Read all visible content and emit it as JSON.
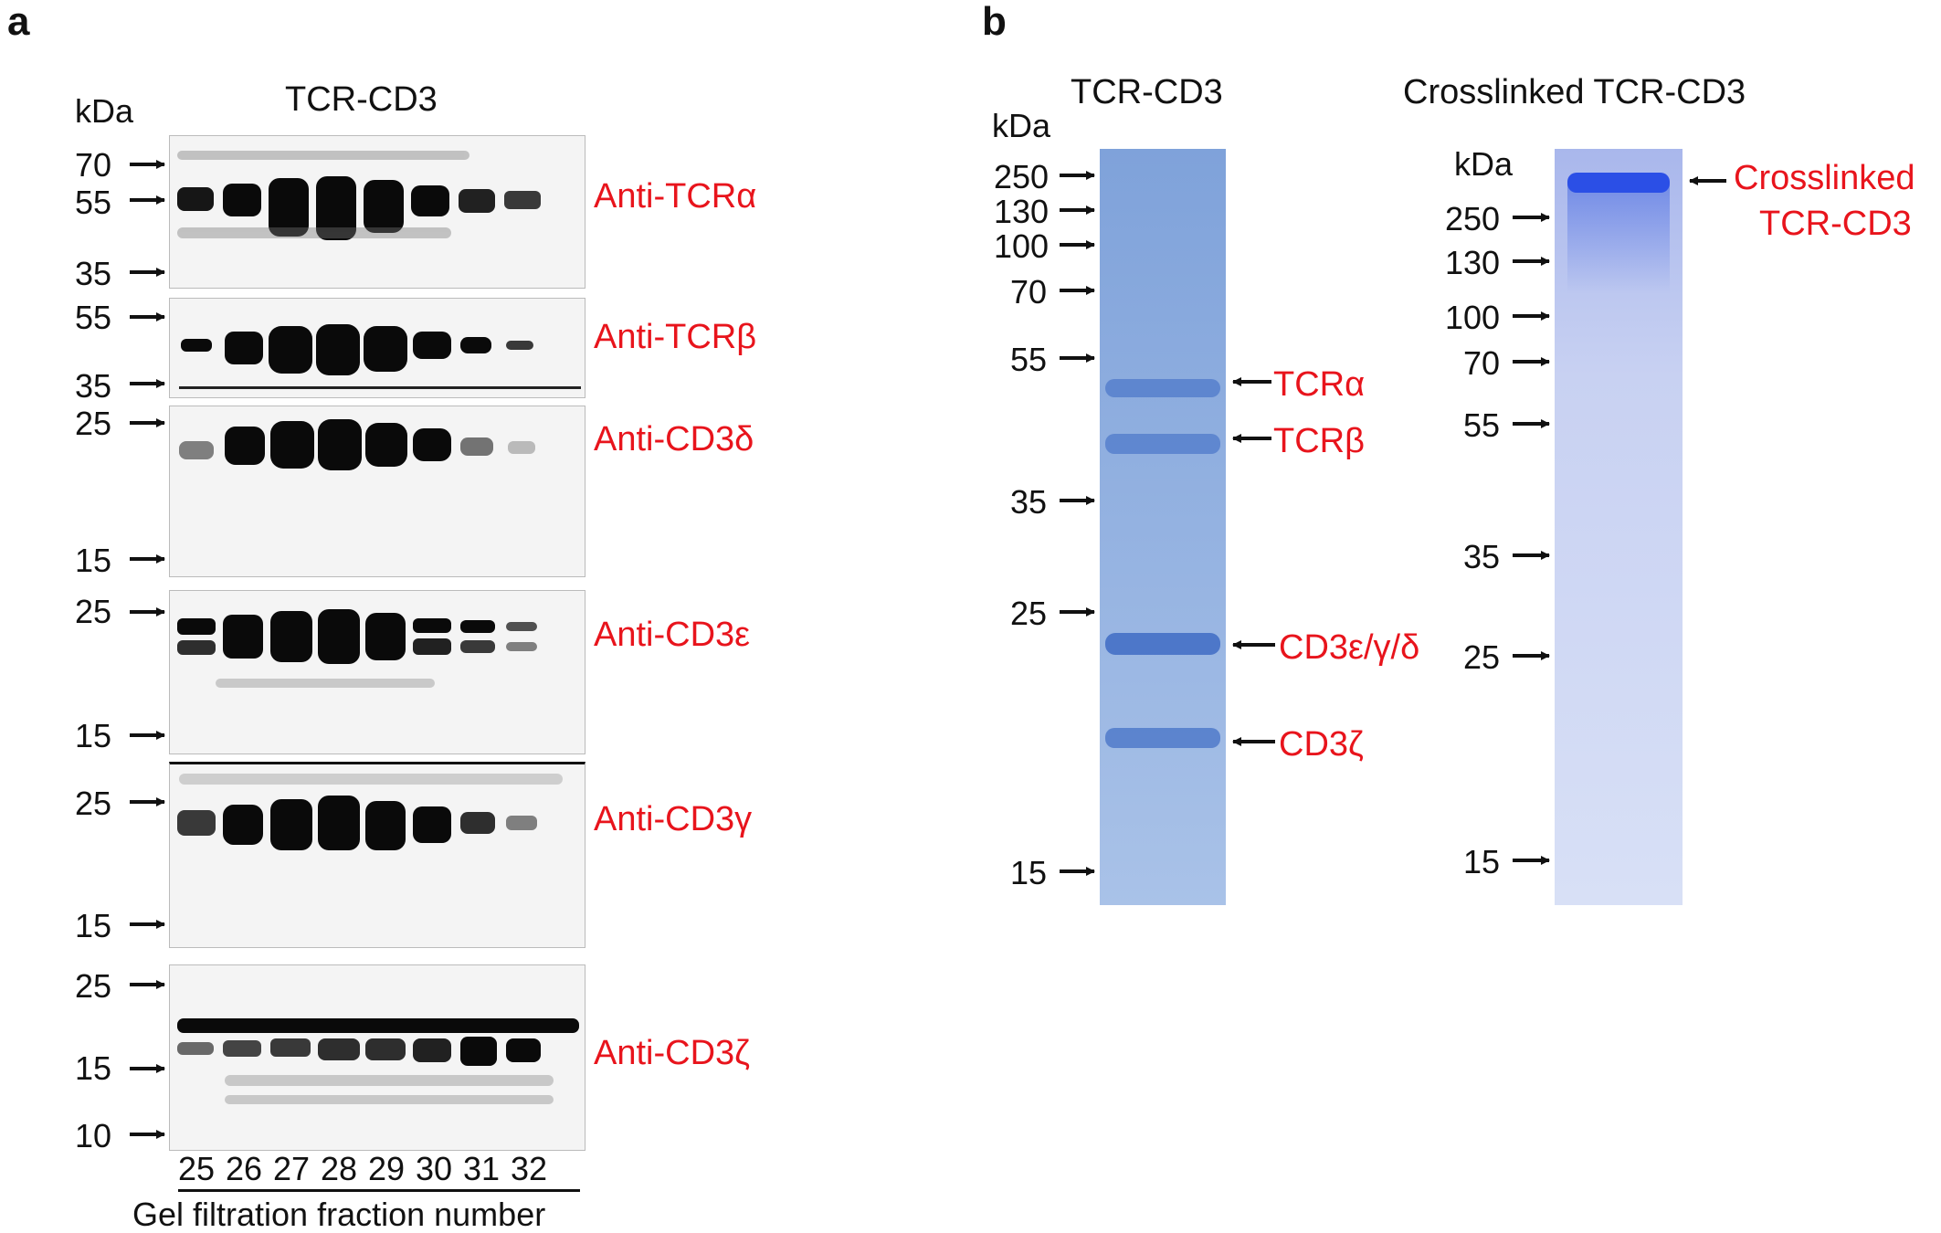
{
  "panel_a": {
    "letter": "a",
    "kda_label": "kDa",
    "title": "TCR-CD3",
    "blots": [
      {
        "antibody": "Anti-TCRα",
        "markers": [
          "70",
          "55",
          "35"
        ]
      },
      {
        "antibody": "Anti-TCRβ",
        "markers": [
          "55",
          "35"
        ]
      },
      {
        "antibody": "Anti-CD3δ",
        "markers": [
          "25",
          "15"
        ]
      },
      {
        "antibody": "Anti-CD3ε",
        "markers": [
          "25",
          "15"
        ]
      },
      {
        "antibody": "Anti-CD3γ",
        "markers": [
          "25",
          "15"
        ]
      },
      {
        "antibody": "Anti-CD3ζ",
        "markers": [
          "25",
          "15",
          "10"
        ]
      }
    ],
    "lanes": [
      "25",
      "26",
      "27",
      "28",
      "29",
      "30",
      "31",
      "32"
    ],
    "xlabel": "Gel filtration fraction number"
  },
  "panel_b": {
    "letter": "b",
    "gel1": {
      "title": "TCR-CD3",
      "kda_label": "kDa",
      "markers": [
        "250",
        "130",
        "100",
        "70",
        "55",
        "35",
        "25",
        "15"
      ],
      "bands": [
        "TCRα",
        "TCRβ",
        "CD3ε/γ/δ",
        "CD3ζ"
      ]
    },
    "gel2": {
      "title": "Crosslinked TCR-CD3",
      "kda_label": "kDa",
      "markers": [
        "250",
        "130",
        "100",
        "70",
        "55",
        "35",
        "25",
        "15"
      ],
      "band_label_line1": "Crosslinked",
      "band_label_line2": "TCR-CD3"
    }
  },
  "colors": {
    "label_red": "#e8141c",
    "coomassie": "#8fb0e0",
    "band_dark": "#0a0a0a"
  }
}
